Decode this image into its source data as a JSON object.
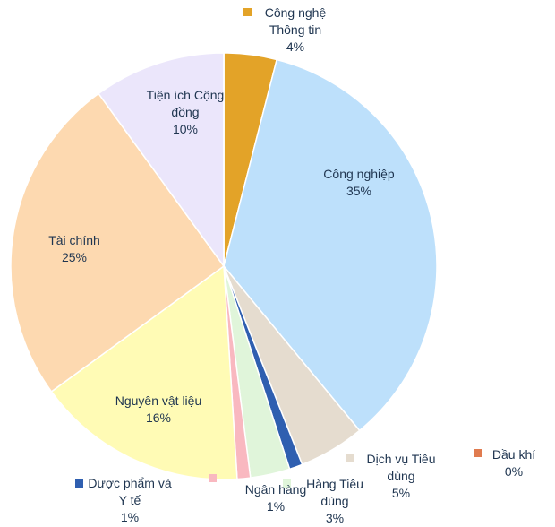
{
  "chart_data": {
    "type": "pie",
    "categories": [
      "Công nghệ Thông tin",
      "Công nghiệp",
      "Dịch vụ Tiêu dùng",
      "Dược phẩm và Y tế",
      "Hàng Tiêu dùng",
      "Ngân hàng",
      "Nguyên vật liệu",
      "Tài chính",
      "Tiện ích Cộng đồng",
      "Dầu khí"
    ],
    "values": [
      4,
      35,
      5,
      1,
      3,
      1,
      16,
      25,
      10,
      0
    ],
    "value_labels": [
      "4%",
      "35%",
      "5%",
      "1%",
      "3%",
      "1%",
      "16%",
      "25%",
      "10%",
      "0%"
    ],
    "colors": [
      "#e3a328",
      "#bde0fb",
      "#e5dccf",
      "#2f5fb0",
      "#e0f5da",
      "#f9b8c0",
      "#fffbb5",
      "#fdd9b0",
      "#ebe6fb",
      "#e07b4f"
    ]
  }
}
